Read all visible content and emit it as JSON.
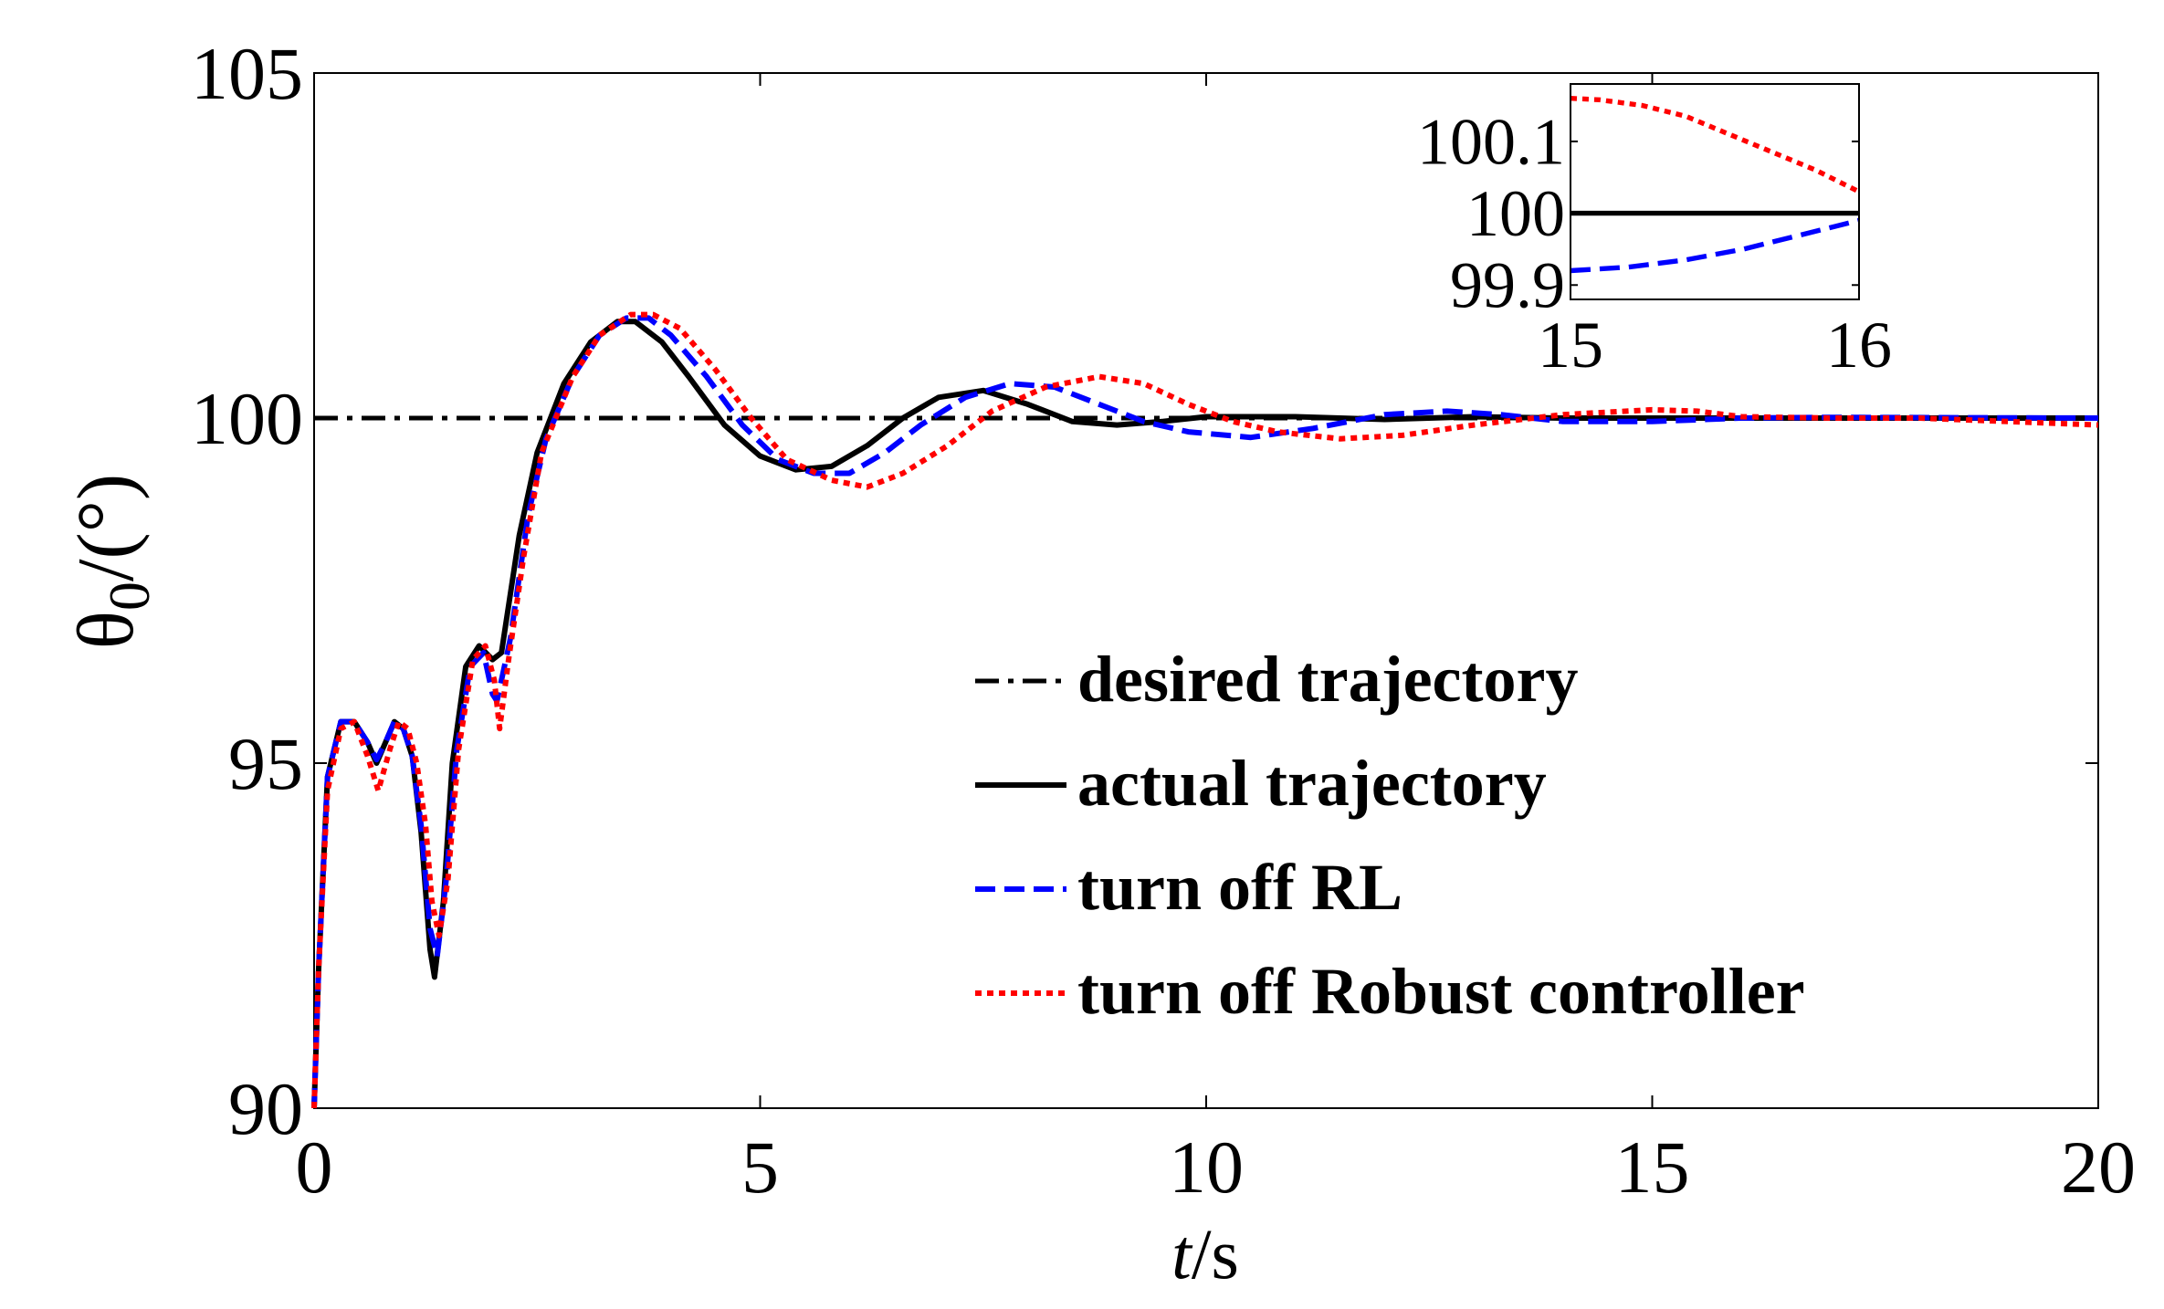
{
  "chart_data": [
    {
      "id": "main",
      "type": "line",
      "xlabel_italic": "t",
      "xlabel_rest": "/s",
      "ylabel_theta": "θ",
      "ylabel_sub": "0",
      "ylabel_rest": "/(°)",
      "xlim": [
        0,
        20
      ],
      "ylim": [
        90,
        105
      ],
      "xticks": [
        0,
        5,
        10,
        15,
        20
      ],
      "yticks": [
        90,
        95,
        100,
        105
      ],
      "xtick_labels": [
        "0",
        "5",
        "10",
        "15",
        "20"
      ],
      "ytick_labels": [
        "90",
        "95",
        "100",
        "105"
      ],
      "legend_position": "lower-right",
      "series": [
        {
          "key": "desired",
          "name": "desired trajectory",
          "color": "#000000",
          "style": "dashdot",
          "points": [
            [
              0,
              100
            ],
            [
              20,
              100
            ]
          ]
        },
        {
          "key": "actual",
          "name": "actual trajectory",
          "color": "#000000",
          "style": "solid",
          "points": [
            [
              0,
              90
            ],
            [
              0.05,
              92
            ],
            [
              0.15,
              94.8
            ],
            [
              0.3,
              95.6
            ],
            [
              0.45,
              95.6
            ],
            [
              0.6,
              95.3
            ],
            [
              0.7,
              95
            ],
            [
              0.8,
              95.3
            ],
            [
              0.9,
              95.6
            ],
            [
              1.0,
              95.5
            ],
            [
              1.1,
              95.1
            ],
            [
              1.2,
              94
            ],
            [
              1.3,
              92.3
            ],
            [
              1.35,
              91.9
            ],
            [
              1.45,
              93
            ],
            [
              1.55,
              95
            ],
            [
              1.7,
              96.4
            ],
            [
              1.85,
              96.7
            ],
            [
              2.0,
              96.5
            ],
            [
              2.1,
              96.6
            ],
            [
              2.3,
              98.3
            ],
            [
              2.5,
              99.5
            ],
            [
              2.8,
              100.5
            ],
            [
              3.1,
              101.1
            ],
            [
              3.4,
              101.4
            ],
            [
              3.6,
              101.4
            ],
            [
              3.9,
              101.1
            ],
            [
              4.2,
              100.6
            ],
            [
              4.6,
              99.9
            ],
            [
              5.0,
              99.45
            ],
            [
              5.4,
              99.25
            ],
            [
              5.8,
              99.3
            ],
            [
              6.2,
              99.6
            ],
            [
              6.6,
              100
            ],
            [
              7.0,
              100.3
            ],
            [
              7.5,
              100.4
            ],
            [
              8.0,
              100.2
            ],
            [
              8.5,
              99.95
            ],
            [
              9.0,
              99.9
            ],
            [
              9.5,
              99.95
            ],
            [
              10,
              100.02
            ],
            [
              11,
              100.02
            ],
            [
              12,
              99.98
            ],
            [
              13,
              100.02
            ],
            [
              14,
              100
            ],
            [
              15,
              100
            ],
            [
              20,
              100
            ]
          ]
        },
        {
          "key": "rl_off",
          "name": "turn off RL",
          "color": "#0000ff",
          "style": "dashed",
          "points": [
            [
              0,
              90
            ],
            [
              0.05,
              92
            ],
            [
              0.15,
              94.8
            ],
            [
              0.3,
              95.6
            ],
            [
              0.45,
              95.6
            ],
            [
              0.6,
              95.3
            ],
            [
              0.7,
              95.05
            ],
            [
              0.8,
              95.3
            ],
            [
              0.9,
              95.6
            ],
            [
              1.0,
              95.5
            ],
            [
              1.1,
              95.1
            ],
            [
              1.2,
              94.1
            ],
            [
              1.3,
              92.6
            ],
            [
              1.38,
              92.2
            ],
            [
              1.48,
              93.3
            ],
            [
              1.6,
              95.2
            ],
            [
              1.75,
              96.4
            ],
            [
              1.9,
              96.6
            ],
            [
              2.0,
              96.0
            ],
            [
              2.05,
              95.9
            ],
            [
              2.2,
              96.8
            ],
            [
              2.4,
              98.6
            ],
            [
              2.6,
              99.7
            ],
            [
              2.9,
              100.6
            ],
            [
              3.2,
              101.2
            ],
            [
              3.5,
              101.45
            ],
            [
              3.75,
              101.45
            ],
            [
              4.0,
              101.2
            ],
            [
              4.4,
              100.6
            ],
            [
              4.8,
              99.9
            ],
            [
              5.2,
              99.4
            ],
            [
              5.6,
              99.2
            ],
            [
              6.0,
              99.2
            ],
            [
              6.4,
              99.5
            ],
            [
              6.8,
              99.9
            ],
            [
              7.3,
              100.3
            ],
            [
              7.8,
              100.5
            ],
            [
              8.3,
              100.45
            ],
            [
              8.8,
              100.2
            ],
            [
              9.3,
              99.95
            ],
            [
              9.8,
              99.8
            ],
            [
              10.5,
              99.72
            ],
            [
              11.2,
              99.85
            ],
            [
              12,
              100.05
            ],
            [
              12.7,
              100.1
            ],
            [
              13.3,
              100.05
            ],
            [
              14,
              99.95
            ],
            [
              15,
              99.95
            ],
            [
              16,
              100
            ],
            [
              17,
              100.01
            ],
            [
              20,
              100
            ]
          ]
        },
        {
          "key": "robust_off",
          "name": "turn off Robust controller",
          "color": "#ff0000",
          "style": "dotted",
          "points": [
            [
              0,
              90
            ],
            [
              0.05,
              92
            ],
            [
              0.15,
              94.6
            ],
            [
              0.3,
              95.5
            ],
            [
              0.45,
              95.6
            ],
            [
              0.6,
              95.1
            ],
            [
              0.72,
              94.6
            ],
            [
              0.85,
              95.2
            ],
            [
              0.95,
              95.6
            ],
            [
              1.05,
              95.5
            ],
            [
              1.15,
              95
            ],
            [
              1.25,
              94.1
            ],
            [
              1.32,
              93
            ],
            [
              1.4,
              92.5
            ],
            [
              1.5,
              93.3
            ],
            [
              1.62,
              95.2
            ],
            [
              1.78,
              96.5
            ],
            [
              1.92,
              96.7
            ],
            [
              2.02,
              96.2
            ],
            [
              2.08,
              95.5
            ],
            [
              2.18,
              96.5
            ],
            [
              2.35,
              98
            ],
            [
              2.55,
              99.5
            ],
            [
              2.9,
              100.6
            ],
            [
              3.2,
              101.2
            ],
            [
              3.55,
              101.5
            ],
            [
              3.8,
              101.5
            ],
            [
              4.1,
              101.3
            ],
            [
              4.5,
              100.7
            ],
            [
              4.9,
              100
            ],
            [
              5.3,
              99.4
            ],
            [
              5.8,
              99.1
            ],
            [
              6.2,
              99.0
            ],
            [
              6.6,
              99.2
            ],
            [
              7.1,
              99.6
            ],
            [
              7.6,
              100.1
            ],
            [
              8.2,
              100.45
            ],
            [
              8.8,
              100.6
            ],
            [
              9.3,
              100.5
            ],
            [
              9.8,
              100.2
            ],
            [
              10.3,
              99.95
            ],
            [
              10.8,
              99.8
            ],
            [
              11.5,
              99.7
            ],
            [
              12.2,
              99.75
            ],
            [
              13,
              99.9
            ],
            [
              14,
              100.05
            ],
            [
              15,
              100.12
            ],
            [
              15.5,
              100.1
            ],
            [
              16,
              100.02
            ],
            [
              17,
              100
            ],
            [
              18,
              100
            ],
            [
              19,
              99.95
            ],
            [
              20,
              99.9
            ]
          ]
        }
      ]
    },
    {
      "id": "inset",
      "type": "line",
      "xlim": [
        15,
        16
      ],
      "ylim": [
        99.88,
        100.18
      ],
      "xticks": [
        15,
        16
      ],
      "yticks": [
        99.9,
        100,
        100.1
      ],
      "xtick_labels": [
        "15",
        "16"
      ],
      "ytick_labels": [
        "99.9",
        "100",
        "100.1"
      ],
      "series": [
        {
          "key": "desired",
          "color": "#000000",
          "style": "dashdot",
          "points": [
            [
              15,
              100
            ],
            [
              16,
              100
            ]
          ]
        },
        {
          "key": "actual",
          "color": "#000000",
          "style": "solid",
          "points": [
            [
              15,
              100
            ],
            [
              16,
              100
            ]
          ]
        },
        {
          "key": "rl_off",
          "color": "#0000ff",
          "style": "dashed",
          "points": [
            [
              15,
              99.92
            ],
            [
              15.2,
              99.925
            ],
            [
              15.4,
              99.935
            ],
            [
              15.6,
              99.95
            ],
            [
              15.8,
              99.97
            ],
            [
              16,
              99.99
            ]
          ]
        },
        {
          "key": "robust_off",
          "color": "#ff0000",
          "style": "dotted",
          "points": [
            [
              15,
              100.16
            ],
            [
              15.1,
              100.158
            ],
            [
              15.25,
              100.15
            ],
            [
              15.4,
              100.135
            ],
            [
              15.55,
              100.11
            ],
            [
              15.7,
              100.085
            ],
            [
              15.85,
              100.06
            ],
            [
              16,
              100.03
            ]
          ]
        }
      ]
    }
  ]
}
